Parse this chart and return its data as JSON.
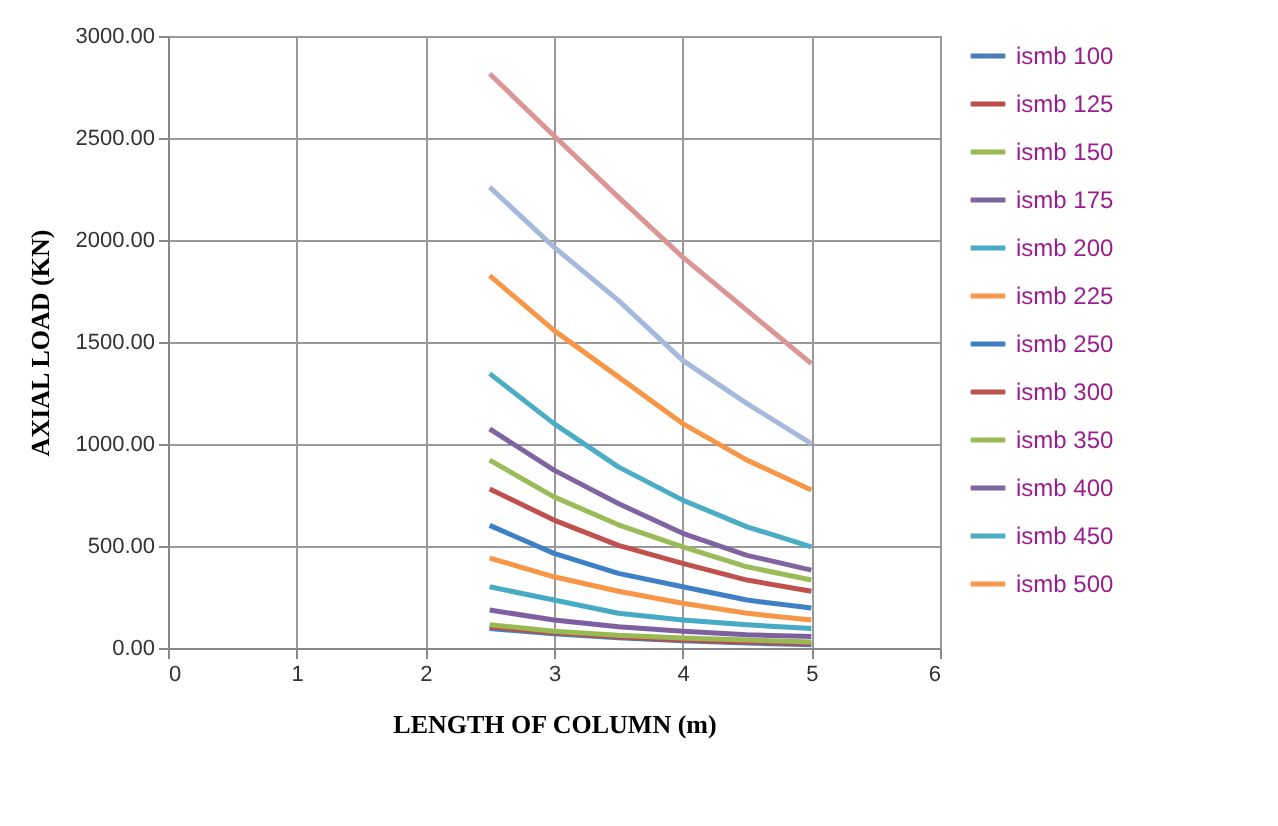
{
  "chart_data": {
    "type": "line",
    "xlabel": "LENGTH OF COLUMN (m)",
    "ylabel": "AXIAL LOAD (KN)",
    "x": [
      2.5,
      3,
      3.5,
      4,
      4.5,
      5
    ],
    "series": [
      {
        "name": "ismb 100",
        "color": "#4a7ebb",
        "values": [
          95,
          70,
          50,
          35,
          24,
          16
        ]
      },
      {
        "name": "ismb 125",
        "color": "#be4b48",
        "values": [
          104,
          76,
          55,
          40,
          30,
          23
        ]
      },
      {
        "name": "ismb 150",
        "color": "#98b954",
        "values": [
          114,
          82,
          62,
          49,
          39,
          29
        ]
      },
      {
        "name": "ismb 175",
        "color": "#7d60a0",
        "values": [
          186,
          137,
          104,
          82,
          65,
          56
        ]
      },
      {
        "name": "ismb 200",
        "color": "#46aac5",
        "values": [
          300,
          235,
          170,
          137,
          114,
          95
        ]
      },
      {
        "name": "ismb 225",
        "color": "#f79646",
        "values": [
          441,
          349,
          278,
          219,
          170,
          137
        ]
      },
      {
        "name": "ismb 250",
        "color": "#3f7fc6",
        "values": [
          601,
          464,
          366,
          300,
          235,
          196
        ]
      },
      {
        "name": "ismb 300",
        "color": "#c0504d",
        "values": [
          780,
          627,
          503,
          415,
          333,
          278
        ]
      },
      {
        "name": "ismb 350",
        "color": "#9bbb59",
        "values": [
          921,
          741,
          604,
          496,
          398,
          333
        ]
      },
      {
        "name": "ismb 400",
        "color": "#8064a2",
        "values": [
          1074,
          872,
          708,
          562,
          454,
          382
        ]
      },
      {
        "name": "ismb 450",
        "color": "#4bacc6",
        "values": [
          1345,
          1100,
          888,
          725,
          594,
          496
        ]
      },
      {
        "name": "ismb 500",
        "color": "#f79646",
        "values": [
          1825,
          1557,
          1329,
          1100,
          921,
          774
        ]
      },
      {
        "color": "#a5b9dc",
        "values": [
          2259,
          1965,
          1704,
          1410,
          1198,
          1002
        ]
      },
      {
        "color": "#d99694",
        "values": [
          2815,
          2511,
          2210,
          1916,
          1655,
          1394
        ]
      }
    ],
    "xlim": [
      0,
      6
    ],
    "xticks": [
      0,
      1,
      2,
      3,
      4,
      5,
      6
    ],
    "ylim": [
      0,
      3000
    ],
    "yticks": [
      {
        "value": 0,
        "label": "0.00"
      },
      {
        "value": 500,
        "label": "500.00"
      },
      {
        "value": 1000,
        "label": "1000.00"
      },
      {
        "value": 1500,
        "label": "1500.00"
      },
      {
        "value": 2000,
        "label": "2000.00"
      },
      {
        "value": 2500,
        "label": "2500.00"
      },
      {
        "value": 3000,
        "label": "3000.00"
      }
    ],
    "grid": true,
    "legend": "right",
    "line_style": "solid",
    "marker": "none"
  }
}
